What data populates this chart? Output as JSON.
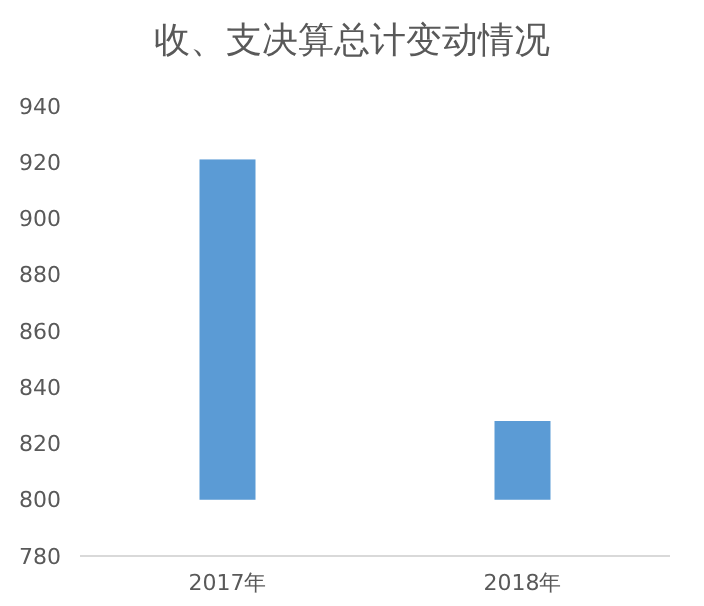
{
  "chart_data": {
    "type": "bar",
    "title": "收、支决算总计变动情况",
    "categories": [
      "2017年",
      "2018年"
    ],
    "values": [
      121,
      28
    ],
    "base": [
      800,
      800
    ],
    "color": "#5b9bd5",
    "ylim": [
      780,
      940
    ],
    "yticks": [
      780,
      800,
      820,
      840,
      860,
      880,
      900,
      920,
      940
    ],
    "grid": false
  }
}
